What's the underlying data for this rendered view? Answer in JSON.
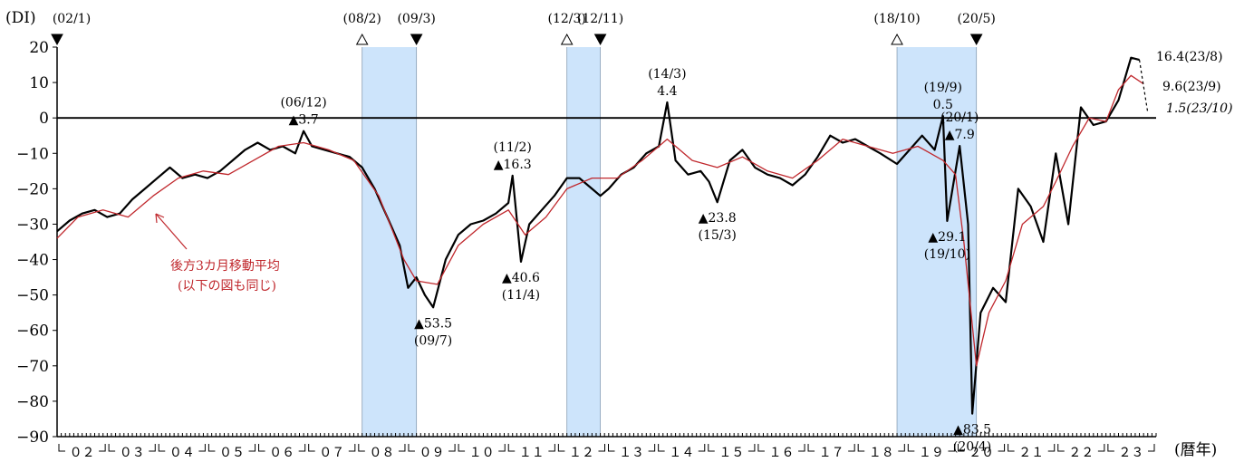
{
  "chart_data": {
    "type": "line",
    "title": "",
    "ylabel": "(DI)",
    "xlabel": "(暦年)",
    "ylim": [
      -90,
      20
    ],
    "yticks": [
      20,
      10,
      0,
      -10,
      -20,
      -30,
      -40,
      -50,
      -60,
      -70,
      -80,
      -90
    ],
    "ytick_labels": [
      "20",
      "10",
      "0",
      "−10",
      "−20",
      "−30",
      "−40",
      "−50",
      "−60",
      "−70",
      "−80",
      "−90"
    ],
    "x_range": [
      "2002-01",
      "2023-10"
    ],
    "x_year_labels": [
      "０２",
      "０３",
      "０４",
      "０５",
      "０６",
      "０７",
      "０８",
      "０９",
      "１０",
      "１１",
      "１２",
      "１３",
      "１４",
      "１５",
      "１６",
      "１７",
      "１８",
      "１９",
      "２０",
      "２１",
      "２２",
      "２３"
    ],
    "recessions": [
      {
        "start": "2008-02",
        "end": "2009-03"
      },
      {
        "start": "2012-03",
        "end": "2012-11"
      },
      {
        "start": "2018-10",
        "end": "2020-05"
      }
    ],
    "turning_points": [
      {
        "date": "2002-01",
        "label": "(02/1)",
        "kind": "trough"
      },
      {
        "date": "2008-02",
        "label": "(08/2)",
        "kind": "peak"
      },
      {
        "date": "2009-03",
        "label": "(09/3)",
        "kind": "trough"
      },
      {
        "date": "2012-03",
        "label": "(12/3)",
        "kind": "peak"
      },
      {
        "date": "2012-11",
        "label": "(12/11)",
        "kind": "trough"
      },
      {
        "date": "2018-10",
        "label": "(18/10)",
        "kind": "peak"
      },
      {
        "date": "2020-05",
        "label": "(20/5)",
        "kind": "trough"
      }
    ],
    "annotations": [
      {
        "date": "2006-12",
        "value": -3.7,
        "line1": "(06/12)",
        "line2": "▲3.7",
        "pos": "above"
      },
      {
        "date": "2011-02",
        "value": -16.3,
        "line1": "(11/2)",
        "line2": "▲16.3",
        "pos": "above"
      },
      {
        "date": "2014-03",
        "value": 4.4,
        "line1": "(14/3)",
        "line2": "4.4",
        "pos": "above"
      },
      {
        "date": "2019-09",
        "value": 0.5,
        "line1": "(19/9)",
        "line2": "0.5",
        "pos": "above"
      },
      {
        "date": "2020-01",
        "value": -7.9,
        "line1": "(20/1)",
        "line2": "▲7.9",
        "pos": "above"
      },
      {
        "date": "2011-04",
        "value": -40.6,
        "line1": "▲40.6",
        "line2": "(11/4)",
        "pos": "below"
      },
      {
        "date": "2009-07",
        "value": -53.5,
        "line1": "▲53.5",
        "line2": "(09/7)",
        "pos": "below"
      },
      {
        "date": "2015-03",
        "value": -23.8,
        "line1": "▲23.8",
        "line2": "(15/3)",
        "pos": "below"
      },
      {
        "date": "2019-10",
        "value": -29.1,
        "line1": "▲29.1",
        "line2": "(19/10)",
        "pos": "below"
      },
      {
        "date": "2020-04",
        "value": -83.5,
        "line1": "▲83.5",
        "line2": "(20/4)",
        "pos": "below"
      }
    ],
    "end_labels": [
      {
        "text": "16.4(23/8)",
        "italic": false
      },
      {
        "text": "9.6(23/9)",
        "italic": false
      },
      {
        "text": "1.5(23/10)",
        "italic": true
      }
    ],
    "legend_note": {
      "line1": "後方3カ月移動平均",
      "line2": "(以下の図も同じ)",
      "color": "#c0282d"
    },
    "colors": {
      "di": "#000000",
      "ma": "#c0282d",
      "recession": "#cde4fb",
      "zero": "#000000"
    },
    "series": [
      {
        "name": "DI",
        "x": [
          "2002-01",
          "2002-04",
          "2002-07",
          "2002-10",
          "2003-01",
          "2003-04",
          "2003-07",
          "2003-10",
          "2004-01",
          "2004-04",
          "2004-07",
          "2004-10",
          "2005-01",
          "2005-04",
          "2005-07",
          "2005-10",
          "2006-01",
          "2006-04",
          "2006-07",
          "2006-10",
          "2006-12",
          "2007-02",
          "2007-05",
          "2007-08",
          "2007-11",
          "2008-02",
          "2008-05",
          "2008-08",
          "2008-11",
          "2009-01",
          "2009-03",
          "2009-05",
          "2009-07",
          "2009-10",
          "2010-01",
          "2010-04",
          "2010-07",
          "2010-10",
          "2011-01",
          "2011-02",
          "2011-04",
          "2011-06",
          "2011-09",
          "2011-12",
          "2012-03",
          "2012-06",
          "2012-09",
          "2012-11",
          "2013-01",
          "2013-04",
          "2013-07",
          "2013-10",
          "2014-01",
          "2014-03",
          "2014-05",
          "2014-08",
          "2014-11",
          "2015-01",
          "2015-03",
          "2015-06",
          "2015-09",
          "2015-12",
          "2016-03",
          "2016-06",
          "2016-09",
          "2016-12",
          "2017-03",
          "2017-06",
          "2017-09",
          "2017-12",
          "2018-03",
          "2018-06",
          "2018-10",
          "2019-01",
          "2019-04",
          "2019-07",
          "2019-09",
          "2019-10",
          "2020-01",
          "2020-03",
          "2020-04",
          "2020-06",
          "2020-09",
          "2020-12",
          "2021-03",
          "2021-06",
          "2021-09",
          "2021-12",
          "2022-03",
          "2022-06",
          "2022-09",
          "2022-12",
          "2023-03",
          "2023-06",
          "2023-08"
        ],
        "y": [
          -32,
          -29,
          -27,
          -26,
          -28,
          -27,
          -23,
          -20,
          -17,
          -14,
          -17,
          -16,
          -17,
          -15,
          -12,
          -9,
          -7,
          -9,
          -8,
          -10,
          -3.7,
          -8,
          -9,
          -10,
          -11,
          -14,
          -20,
          -28,
          -36,
          -48,
          -45,
          -50,
          -53.5,
          -40,
          -33,
          -30,
          -29,
          -27,
          -24,
          -16.3,
          -40.6,
          -30,
          -26,
          -22,
          -17,
          -17,
          -20,
          -22,
          -20,
          -16,
          -14,
          -10,
          -8,
          4.4,
          -12,
          -16,
          -15,
          -18,
          -23.8,
          -12,
          -9,
          -14,
          -16,
          -17,
          -19,
          -16,
          -11,
          -5,
          -7,
          -6,
          -8,
          -10,
          -13,
          -9,
          -5,
          -9,
          0.5,
          -29.1,
          -7.9,
          -30,
          -83.5,
          -55,
          -48,
          -52,
          -20,
          -25,
          -35,
          -10,
          -30,
          3,
          -2,
          -1,
          5,
          17,
          16.4
        ]
      },
      {
        "name": "後方3カ月移動平均",
        "x": [
          "2002-01",
          "2002-06",
          "2002-12",
          "2003-06",
          "2003-12",
          "2004-06",
          "2004-12",
          "2005-06",
          "2005-12",
          "2006-06",
          "2006-12",
          "2007-06",
          "2007-12",
          "2008-06",
          "2008-12",
          "2009-03",
          "2009-08",
          "2010-01",
          "2010-07",
          "2011-01",
          "2011-05",
          "2011-10",
          "2012-03",
          "2012-09",
          "2013-03",
          "2013-09",
          "2014-03",
          "2014-09",
          "2015-03",
          "2015-09",
          "2016-03",
          "2016-09",
          "2017-03",
          "2017-09",
          "2018-03",
          "2018-09",
          "2019-03",
          "2019-09",
          "2019-12",
          "2020-02",
          "2020-05",
          "2020-08",
          "2020-12",
          "2021-04",
          "2021-09",
          "2021-12",
          "2022-04",
          "2022-08",
          "2022-12",
          "2023-03",
          "2023-06",
          "2023-09"
        ],
        "y": [
          -34,
          -28,
          -26,
          -28,
          -22,
          -17,
          -15,
          -16,
          -12,
          -8,
          -7,
          -9,
          -12,
          -22,
          -40,
          -46,
          -47,
          -36,
          -30,
          -26,
          -33,
          -28,
          -20,
          -17,
          -17,
          -12,
          -6,
          -12,
          -14,
          -11,
          -15,
          -17,
          -12,
          -6,
          -8,
          -10,
          -8,
          -12,
          -16,
          -35,
          -70,
          -55,
          -46,
          -30,
          -25,
          -18,
          -8,
          0,
          -1,
          8,
          12,
          9.6
        ]
      }
    ]
  }
}
